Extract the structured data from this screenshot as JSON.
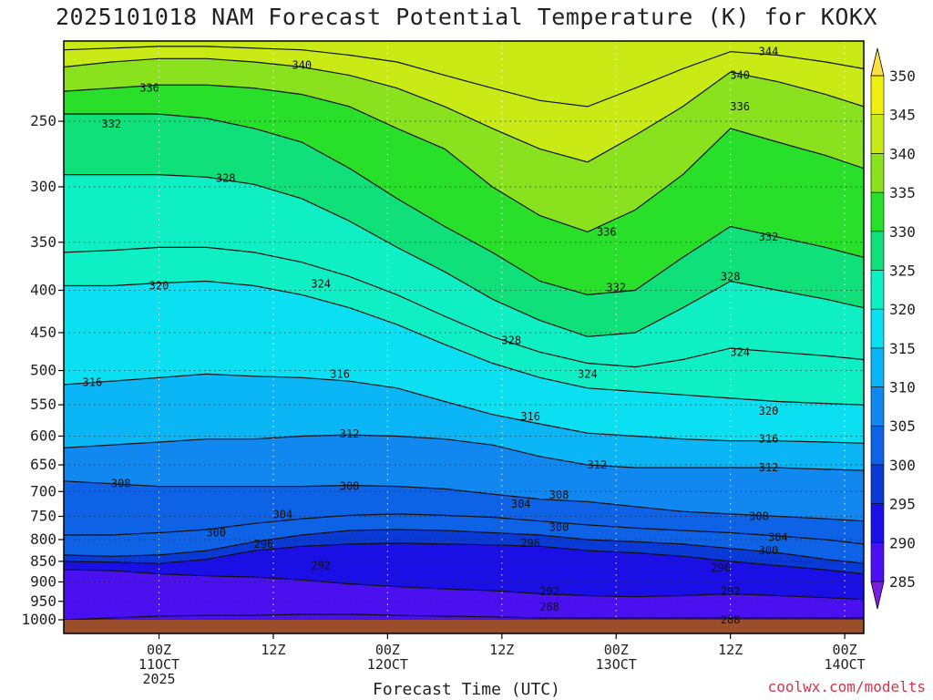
{
  "page": {
    "title": "2025101018 NAM Forecast Potential Temperature (K) for KOKX",
    "credit": "coolwx.com/modelts"
  },
  "chart_data": {
    "type": "heatmap",
    "title": "2025101018 NAM Forecast Potential Temperature (K) for KOKX",
    "xlabel": "Forecast Time (UTC)",
    "ylabel": "",
    "y_axis_pressure_hpa": {
      "ticks": [
        250,
        300,
        350,
        400,
        450,
        500,
        550,
        600,
        650,
        700,
        750,
        800,
        850,
        900,
        950,
        1000
      ],
      "range": [
        1000,
        200
      ],
      "scale": "log"
    },
    "x_axis_forecast_hour": {
      "range": [
        -4,
        80
      ],
      "ticks": [
        {
          "hour": 6,
          "lines": [
            "00Z",
            "11OCT",
            "2025"
          ]
        },
        {
          "hour": 18,
          "lines": [
            "12Z"
          ]
        },
        {
          "hour": 30,
          "lines": [
            "00Z",
            "12OCT"
          ]
        },
        {
          "hour": 42,
          "lines": [
            "12Z"
          ]
        },
        {
          "hour": 54,
          "lines": [
            "00Z",
            "13OCT"
          ]
        },
        {
          "hour": 66,
          "lines": [
            "12Z"
          ]
        },
        {
          "hour": 78,
          "lines": [
            "00Z",
            "14OCT"
          ]
        }
      ]
    },
    "grid": true,
    "legend": "right-colorbar",
    "colorbar": {
      "ticks": [
        285,
        290,
        295,
        300,
        305,
        310,
        315,
        320,
        325,
        330,
        335,
        340,
        345,
        350
      ],
      "levels": [
        285,
        290,
        295,
        300,
        305,
        310,
        315,
        320,
        325,
        330,
        335,
        340,
        345,
        350
      ],
      "colors": [
        "#7a1fe0",
        "#4a10f0",
        "#1a10e6",
        "#0a3ad6",
        "#0e62e6",
        "#1088f0",
        "#0ab6f5",
        "#0ae0f2",
        "#0ef0c4",
        "#10e07a",
        "#28e02a",
        "#8ae21e",
        "#c9ea14",
        "#f0f010",
        "#ffe040"
      ]
    },
    "isentropes": [
      {
        "theta": 288,
        "p": [
          1000,
          995,
          990,
          988,
          988,
          985,
          985,
          988,
          990,
          992,
          995,
          995,
          995,
          995,
          995,
          995,
          995,
          995
        ]
      },
      {
        "theta": 292,
        "p": [
          870,
          872,
          880,
          885,
          888,
          895,
          905,
          912,
          918,
          922,
          930,
          935,
          938,
          935,
          930,
          935,
          940,
          945
        ]
      },
      {
        "theta": 296,
        "p": [
          850,
          852,
          855,
          845,
          825,
          815,
          810,
          808,
          810,
          812,
          815,
          825,
          830,
          838,
          850,
          860,
          870,
          880
        ]
      },
      {
        "theta": 300,
        "p": [
          835,
          838,
          835,
          825,
          805,
          790,
          780,
          778,
          780,
          785,
          790,
          800,
          805,
          810,
          820,
          830,
          845,
          855
        ]
      },
      {
        "theta": 304,
        "p": [
          790,
          790,
          785,
          778,
          765,
          755,
          748,
          745,
          748,
          752,
          760,
          768,
          775,
          780,
          785,
          792,
          800,
          810
        ]
      },
      {
        "theta": 308,
        "p": [
          680,
          685,
          690,
          690,
          690,
          690,
          688,
          690,
          695,
          705,
          715,
          720,
          730,
          740,
          745,
          750,
          755,
          760
        ]
      },
      {
        "theta": 312,
        "p": [
          620,
          615,
          610,
          605,
          605,
          600,
          598,
          600,
          605,
          615,
          635,
          650,
          655,
          655,
          655,
          655,
          658,
          660
        ]
      },
      {
        "theta": 316,
        "p": [
          520,
          515,
          510,
          505,
          508,
          510,
          515,
          525,
          545,
          565,
          580,
          595,
          600,
          605,
          608,
          608,
          610,
          612
        ]
      },
      {
        "theta": 320,
        "p": [
          395,
          395,
          392,
          390,
          395,
          405,
          420,
          440,
          465,
          490,
          510,
          525,
          530,
          535,
          540,
          545,
          548,
          550
        ]
      },
      {
        "theta": 324,
        "p": [
          360,
          358,
          355,
          355,
          360,
          370,
          385,
          405,
          430,
          455,
          475,
          490,
          495,
          485,
          470,
          475,
          480,
          485
        ]
      },
      {
        "theta": 328,
        "p": [
          290,
          290,
          290,
          292,
          298,
          310,
          330,
          355,
          380,
          410,
          435,
          455,
          450,
          420,
          390,
          400,
          410,
          420
        ]
      },
      {
        "theta": 332,
        "p": [
          245,
          245,
          245,
          248,
          255,
          265,
          285,
          310,
          335,
          360,
          390,
          405,
          400,
          365,
          335,
          345,
          355,
          365
        ]
      },
      {
        "theta": 336,
        "p": [
          230,
          228,
          226,
          226,
          228,
          232,
          240,
          255,
          270,
          300,
          325,
          340,
          320,
          290,
          255,
          265,
          275,
          285
        ]
      },
      {
        "theta": 340,
        "p": [
          215,
          212,
          210,
          210,
          212,
          215,
          220,
          228,
          240,
          255,
          270,
          280,
          260,
          240,
          218,
          224,
          232,
          240
        ]
      },
      {
        "theta": 344,
        "p": [
          205,
          204,
          203,
          203,
          204,
          205,
          208,
          212,
          220,
          228,
          236,
          240,
          228,
          216,
          206,
          208,
          212,
          216
        ]
      }
    ],
    "isentrope_hours": [
      -4,
      1,
      6,
      11,
      16,
      21,
      26,
      31,
      36,
      41,
      46,
      51,
      56,
      61,
      66,
      71,
      76,
      80
    ],
    "contour_labels": [
      {
        "text": "340",
        "hour": 21,
        "p": 214
      },
      {
        "text": "336",
        "hour": 5,
        "p": 228
      },
      {
        "text": "332",
        "hour": 1,
        "p": 252
      },
      {
        "text": "328",
        "hour": 13,
        "p": 293
      },
      {
        "text": "320",
        "hour": 6,
        "p": 395
      },
      {
        "text": "324",
        "hour": 23,
        "p": 393
      },
      {
        "text": "316",
        "hour": -1,
        "p": 517
      },
      {
        "text": "316",
        "hour": 25,
        "p": 505
      },
      {
        "text": "312",
        "hour": 26,
        "p": 596
      },
      {
        "text": "308",
        "hour": 2,
        "p": 685
      },
      {
        "text": "308",
        "hour": 26,
        "p": 690
      },
      {
        "text": "304",
        "hour": 19,
        "p": 746
      },
      {
        "text": "300",
        "hour": 12,
        "p": 785
      },
      {
        "text": "296",
        "hour": 17,
        "p": 810
      },
      {
        "text": "292",
        "hour": 23,
        "p": 860
      },
      {
        "text": "336",
        "hour": 53,
        "p": 340
      },
      {
        "text": "332",
        "hour": 54,
        "p": 397
      },
      {
        "text": "328",
        "hour": 43,
        "p": 460
      },
      {
        "text": "324",
        "hour": 51,
        "p": 505
      },
      {
        "text": "316",
        "hour": 45,
        "p": 568
      },
      {
        "text": "312",
        "hour": 52,
        "p": 650
      },
      {
        "text": "308",
        "hour": 48,
        "p": 707
      },
      {
        "text": "304",
        "hour": 44,
        "p": 725
      },
      {
        "text": "300",
        "hour": 48,
        "p": 773
      },
      {
        "text": "296",
        "hour": 45,
        "p": 808
      },
      {
        "text": "292",
        "hour": 47,
        "p": 925
      },
      {
        "text": "288",
        "hour": 47,
        "p": 965
      },
      {
        "text": "344",
        "hour": 70,
        "p": 206
      },
      {
        "text": "340",
        "hour": 67,
        "p": 220
      },
      {
        "text": "336",
        "hour": 67,
        "p": 240
      },
      {
        "text": "332",
        "hour": 70,
        "p": 345
      },
      {
        "text": "328",
        "hour": 66,
        "p": 385
      },
      {
        "text": "324",
        "hour": 67,
        "p": 475
      },
      {
        "text": "320",
        "hour": 70,
        "p": 560
      },
      {
        "text": "316",
        "hour": 70,
        "p": 605
      },
      {
        "text": "312",
        "hour": 70,
        "p": 655
      },
      {
        "text": "308",
        "hour": 69,
        "p": 750
      },
      {
        "text": "304",
        "hour": 71,
        "p": 795
      },
      {
        "text": "300",
        "hour": 70,
        "p": 825
      },
      {
        "text": "296",
        "hour": 65,
        "p": 865
      },
      {
        "text": "292",
        "hour": 66,
        "p": 925
      },
      {
        "text": "288",
        "hour": 66,
        "p": 1000
      }
    ]
  }
}
